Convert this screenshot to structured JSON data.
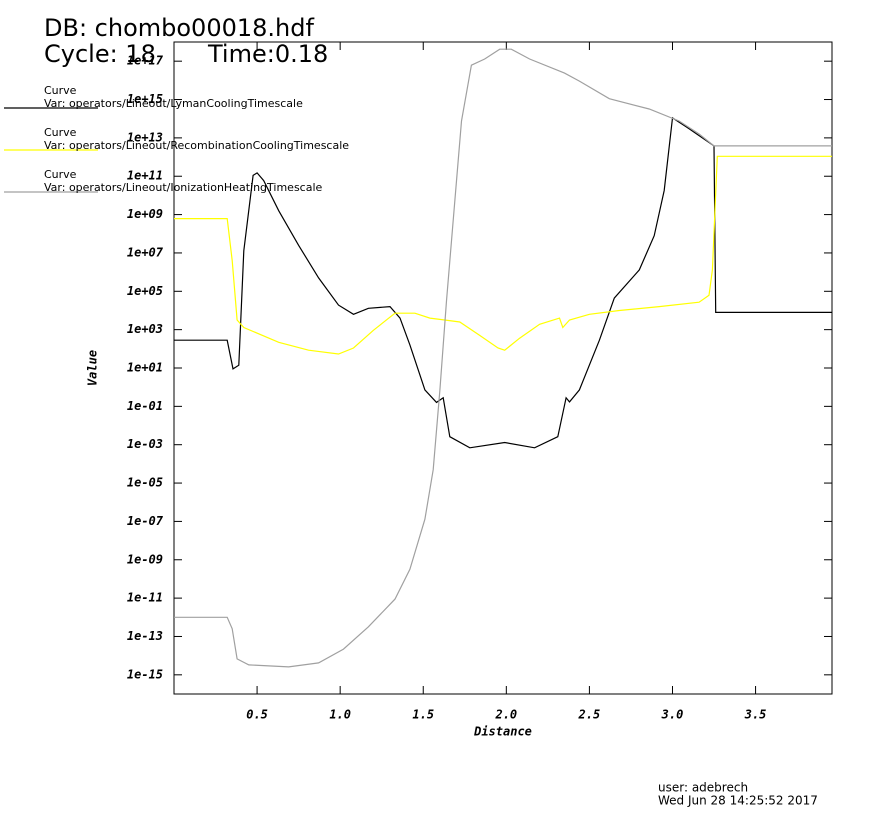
{
  "chart_data": {
    "type": "line",
    "title": "DB: chombo00018.hdf",
    "cycle": "Cycle: 18",
    "time": "Time:0.18",
    "legend_header": "Curve",
    "xlabel": "Distance",
    "ylabel": "Value",
    "user": "user: adebrech",
    "date": "Wed Jun 28 14:25:52 2017",
    "ylog": true,
    "xlim": [
      0,
      3.96
    ],
    "ylim": [
      1e-16,
      1e+18
    ],
    "xticks": [
      0.5,
      {
        "value": 1,
        "label": "1.0"
      },
      1.5,
      {
        "value": 2,
        "label": "2.0"
      },
      2.5,
      {
        "value": 3,
        "label": "3.0"
      },
      3.5
    ],
    "yticks": [
      {
        "value": 1e-15,
        "label": "1e-15"
      },
      {
        "value": 1e-13,
        "label": "1e-13"
      },
      {
        "value": 1e-11,
        "label": "1e-11"
      },
      {
        "value": 1e-09,
        "label": "1e-09"
      },
      {
        "value": 1e-07,
        "label": "1e-07"
      },
      {
        "value": 1e-05,
        "label": "1e-05"
      },
      {
        "value": 0.001,
        "label": "1e-03"
      },
      {
        "value": 0.1,
        "label": "1e-01"
      },
      {
        "value": 10,
        "label": "1e+01"
      },
      {
        "value": 1000,
        "label": "1e+03"
      },
      {
        "value": 100000.0,
        "label": "1e+05"
      },
      {
        "value": 10000000.0,
        "label": "1e+07"
      },
      {
        "value": 1000000000.0,
        "label": "1e+09"
      },
      {
        "value": 100000000000.0,
        "label": "1e+11"
      },
      {
        "value": 10000000000000.0,
        "label": "1e+13"
      },
      {
        "value": 1000000000000000.0,
        "label": "1e+15"
      },
      {
        "value": 1e+17,
        "label": "1e+17"
      }
    ],
    "series": [
      {
        "name": "Var: operators/Lineout/LymanCoolingTimescale",
        "color": "#000000",
        "x": [
          0,
          0.32,
          0.355,
          0.39,
          0.42,
          0.476,
          0.5,
          0.54,
          0.63,
          0.75,
          0.87,
          0.99,
          1.08,
          1.17,
          1.3,
          1.36,
          1.42,
          1.51,
          1.58,
          1.62,
          1.66,
          1.78,
          1.99,
          2.17,
          2.31,
          2.36,
          2.38,
          2.44,
          2.56,
          2.65,
          2.8,
          2.89,
          2.95,
          3.0,
          3.1,
          3.25,
          3.26,
          3.96
        ],
        "values": [
          280,
          280,
          9,
          14,
          13000000.0,
          110000000000.0,
          150000000000.0,
          59000000000.0,
          1600000000.0,
          25000000.0,
          500000.0,
          19000.0,
          6300,
          13000.0,
          16000.0,
          4000,
          160,
          0.72,
          0.16,
          0.28,
          0.0026,
          0.00069,
          0.0013,
          0.00069,
          0.0026,
          0.28,
          0.17,
          0.72,
          280,
          44000.0,
          1300000.0,
          79000000.0,
          18000000000.0,
          110000000000000.0,
          30000000000000.0,
          3800000000000.0,
          7900,
          7900
        ]
      },
      {
        "name": "Var: operators/Lineout/RecombinationCoolingTimescale",
        "color": "#ffff00",
        "x": [
          0,
          0.32,
          0.35,
          0.38,
          0.42,
          0.63,
          0.81,
          0.99,
          1.08,
          1.2,
          1.33,
          1.45,
          1.54,
          1.63,
          1.72,
          1.84,
          1.95,
          1.99,
          2.08,
          2.2,
          2.32,
          2.34,
          2.38,
          2.5,
          2.68,
          2.92,
          3.16,
          3.22,
          3.24,
          3.27,
          3.96
        ],
        "values": [
          620000000.0,
          620000000.0,
          4000000.0,
          3200,
          1300,
          220,
          85,
          54,
          110,
          930,
          7200,
          7200,
          4000,
          3200,
          2500,
          500,
          110,
          85,
          360,
          1900,
          4000,
          1300,
          3200,
          6300,
          10000.0,
          16000.0,
          27000.0,
          62000.0,
          1300000.0,
          1100000000000.0,
          1100000000000.0
        ]
      },
      {
        "name": "Var: operators/Lineout/IonizationHeatingTimescale",
        "color": "#a0a0a0",
        "x": [
          0,
          0.32,
          0.35,
          0.38,
          0.45,
          0.69,
          0.87,
          1.02,
          1.17,
          1.33,
          1.42,
          1.51,
          1.56,
          1.6,
          1.64,
          1.69,
          1.73,
          1.79,
          1.87,
          1.96,
          2.03,
          2.14,
          2.35,
          2.44,
          2.62,
          2.86,
          3.04,
          3.16,
          3.25,
          3.96
        ],
        "values": [
          1e-12,
          1e-12,
          2.5e-13,
          6.8e-15,
          3.3e-15,
          2.6e-15,
          4.2e-15,
          2.2e-14,
          3.2e-13,
          8.9e-12,
          3.2e-10,
          1.3e-07,
          5e-05,
          0.72,
          32000.0,
          5000000000.0,
          76000000000000.0,
          6.2e+16,
          1.3e+17,
          4.2e+17,
          4.2e+17,
          1.3e+17,
          2.4e+16,
          9100000000000000.0,
          1100000000000000.0,
          320000000000000.0,
          76000000000000.0,
          16000000000000.0,
          3800000000000.0,
          3800000000000.0
        ]
      }
    ]
  }
}
